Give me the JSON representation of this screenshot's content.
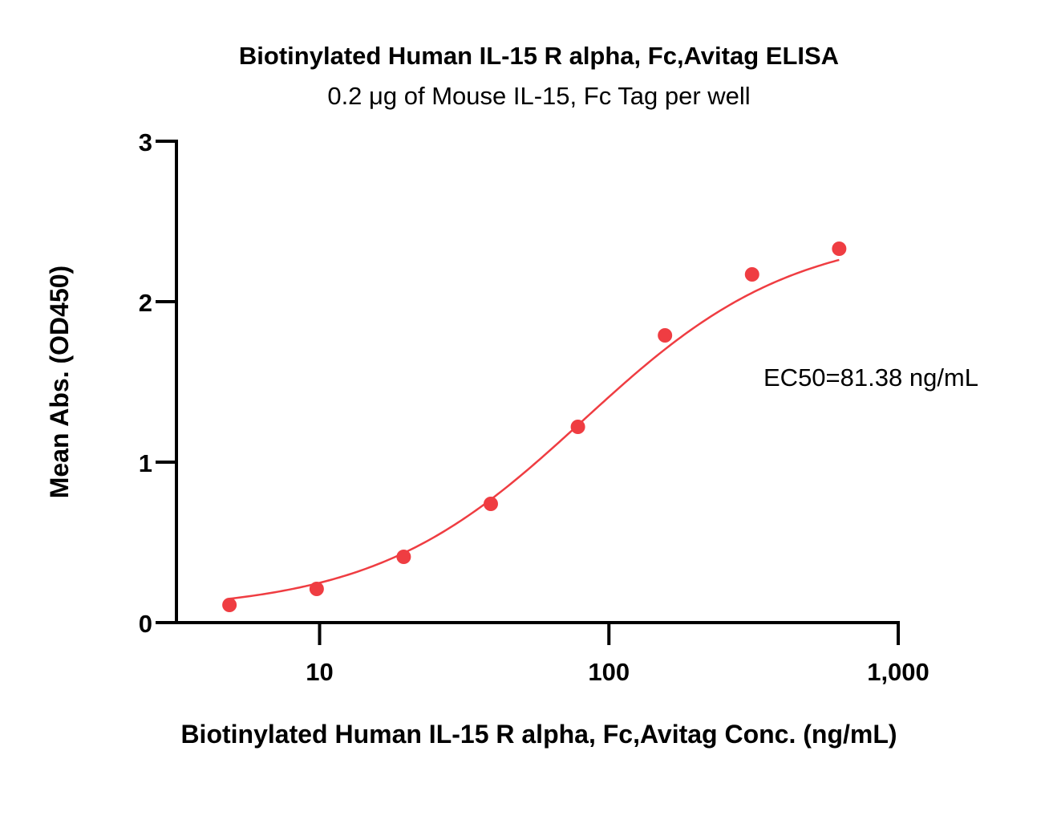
{
  "chart_data": {
    "type": "scatter",
    "title": "Biotinylated Human IL-15 R alpha, Fc,Avitag ELISA",
    "subtitle": "0.2 μg of Mouse IL-15, Fc Tag per well",
    "xlabel": "Biotinylated Human IL-15 R alpha, Fc,Avitag Conc. (ng/mL)",
    "ylabel": "Mean Abs. (OD450)",
    "x_scale": "log",
    "xlim": [
      3.2,
      1000
    ],
    "ylim": [
      0,
      3
    ],
    "x_ticks": [
      10,
      100,
      1000
    ],
    "x_tick_labels": [
      "10",
      "100",
      "1,000"
    ],
    "y_ticks": [
      0,
      1,
      2,
      3
    ],
    "y_tick_labels": [
      "0",
      "1",
      "2",
      "3"
    ],
    "grid": false,
    "color": "#ef3d42",
    "x": [
      4.88,
      9.77,
      19.53,
      39.06,
      78.13,
      156.25,
      312.5,
      625
    ],
    "y": [
      0.11,
      0.21,
      0.41,
      0.74,
      1.22,
      1.79,
      2.17,
      2.33
    ],
    "fit": {
      "bottom": 0.07,
      "top": 2.45,
      "ec50": 81.38,
      "hill": 1.2
    },
    "annotation": "EC50=81.38 ng/mL"
  }
}
